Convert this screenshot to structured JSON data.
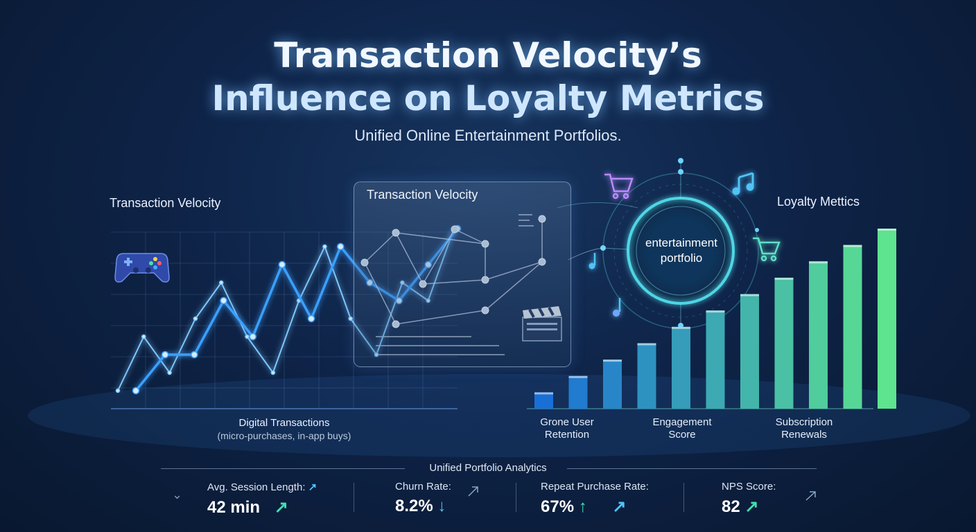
{
  "title_line1": "Transaction Velocity’s",
  "title_line2": "Influence on Loyalty Metrics",
  "subtitle": "Unified Online Entertainment Portfolios.",
  "left_section_label": "Transaction Velocity",
  "left_chart_caption": "Digital Transactions",
  "left_chart_note": "(micro-purchases, in-app buys)",
  "panel_title": "Transaction Velocity",
  "portfolio_label_line1": "entertainment",
  "portfolio_label_line2": "portfolio",
  "right_section_label": "Loyalty Mettics",
  "bar_categories": [
    {
      "line1": "Grone User",
      "line2": "Retention"
    },
    {
      "line1": "Engagement",
      "line2": "Score"
    },
    {
      "line1": "Subscription",
      "line2": "Renewals"
    }
  ],
  "footer_title": "Unified Portfolio Analytics",
  "metrics": [
    {
      "label": "Avg. Session Length:",
      "value": "42 min",
      "arrow": "↗"
    },
    {
      "label": "Churn Rate:",
      "value": "8.2%",
      "arrow": "↓"
    },
    {
      "label": "Repeat Purchase Rate:",
      "value": "67%",
      "arrow": "↑"
    },
    {
      "label": "NPS Score:",
      "value": "82",
      "arrow": "↗"
    }
  ],
  "colors": {
    "line_glow": "#3aa0ff",
    "bar_start": "#1a6fd6",
    "bar_mid": "#19d3c5",
    "bar_end": "#5ee38f",
    "accent_green": "#3ee0b0"
  },
  "icons": [
    "gamepad-icon",
    "shopping-cart-icon",
    "music-note-icon",
    "clapperboard-icon",
    "trend-arrow-icon"
  ],
  "chart_data": {
    "type": "bar",
    "title": "Loyalty Mettics",
    "series": [
      {
        "values": [
          1,
          2,
          3,
          4,
          5,
          6,
          7,
          8,
          9,
          10,
          11
        ]
      }
    ],
    "ylim": [
      0,
      11
    ],
    "line_series": [
      {
        "values": [
          1,
          4,
          2,
          5,
          7,
          4,
          2,
          6,
          9,
          5,
          3,
          7,
          6,
          10
        ]
      },
      {
        "values": [
          1,
          3,
          3,
          6,
          4,
          8,
          5,
          9,
          7,
          6,
          8,
          10
        ]
      }
    ],
    "grid": true,
    "legend": "none"
  }
}
